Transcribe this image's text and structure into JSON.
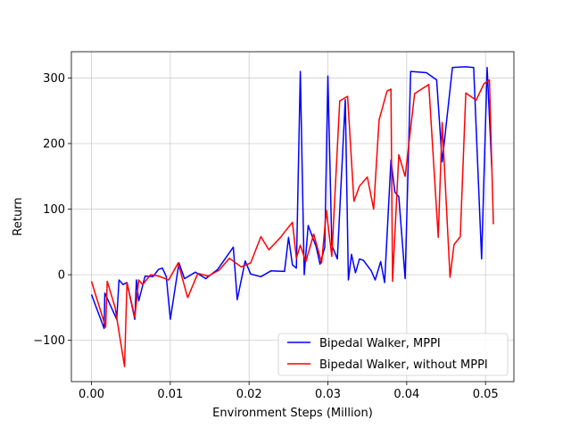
{
  "chart_data": {
    "type": "line",
    "title": "",
    "xlabel": "Environment Steps (Million)",
    "ylabel": "Return",
    "xlim": [
      -0.00255,
      0.0536
    ],
    "ylim": [
      -163,
      340
    ],
    "x_ticks": [
      0.0,
      0.01,
      0.02,
      0.03,
      0.04,
      0.05
    ],
    "x_tick_labels": [
      "0.00",
      "0.01",
      "0.02",
      "0.03",
      "0.04",
      "0.05"
    ],
    "y_ticks": [
      -100,
      0,
      100,
      200,
      300
    ],
    "y_tick_labels": [
      "−100",
      "0",
      "100",
      "200",
      "300"
    ],
    "grid": true,
    "legend_position": "lower right",
    "series": [
      {
        "name": "Bipedal Walker, MPPI",
        "color": "#0000ff",
        "x": [
          0.0,
          0.0016,
          0.0017,
          0.0032,
          0.0035,
          0.004,
          0.0045,
          0.0055,
          0.0057,
          0.006,
          0.0068,
          0.0078,
          0.0085,
          0.009,
          0.0095,
          0.01,
          0.0111,
          0.0118,
          0.0132,
          0.0145,
          0.016,
          0.018,
          0.0185,
          0.0195,
          0.0202,
          0.0215,
          0.0228,
          0.0245,
          0.025,
          0.0255,
          0.026,
          0.0265,
          0.027,
          0.0275,
          0.0285,
          0.029,
          0.0296,
          0.03,
          0.0305,
          0.0312,
          0.0322,
          0.0326,
          0.033,
          0.0335,
          0.034,
          0.0345,
          0.0355,
          0.036,
          0.0367,
          0.0372,
          0.038,
          0.0385,
          0.039,
          0.0398,
          0.0405,
          0.0425,
          0.0438,
          0.0445,
          0.0458,
          0.0475,
          0.0485,
          0.0495,
          0.0502,
          0.0508
        ],
        "y": [
          -30,
          -82,
          -28,
          -68,
          -8,
          -15,
          -12,
          -68,
          -8,
          -40,
          -2,
          -3,
          8,
          10,
          -3,
          -68,
          18,
          -6,
          4,
          -6,
          8,
          42,
          -38,
          21,
          1,
          -3,
          6,
          5,
          57,
          15,
          10,
          310,
          0,
          75,
          43,
          16,
          42,
          303,
          45,
          24,
          267,
          -8,
          31,
          3,
          24,
          22,
          6,
          -8,
          20,
          -12,
          175,
          126,
          119,
          -6,
          310,
          308,
          297,
          172,
          316,
          317,
          316,
          24,
          316,
          160
        ]
      },
      {
        "name": "Bipedal Walker, without MPPI",
        "color": "#ff0000",
        "x": [
          0.0,
          0.0018,
          0.002,
          0.003,
          0.0042,
          0.0045,
          0.0055,
          0.006,
          0.0065,
          0.0075,
          0.0085,
          0.0098,
          0.011,
          0.0122,
          0.0135,
          0.0148,
          0.0162,
          0.0175,
          0.019,
          0.0202,
          0.0215,
          0.0225,
          0.024,
          0.0245,
          0.0255,
          0.026,
          0.0265,
          0.0272,
          0.0282,
          0.0292,
          0.0298,
          0.0305,
          0.0315,
          0.0325,
          0.0333,
          0.034,
          0.035,
          0.0358,
          0.0365,
          0.0375,
          0.038,
          0.0382,
          0.039,
          0.0398,
          0.041,
          0.0415,
          0.0428,
          0.044,
          0.0445,
          0.0455,
          0.046,
          0.0468,
          0.0475,
          0.0488,
          0.0498,
          0.0505,
          0.051
        ],
        "y": [
          -10,
          -80,
          -10,
          -50,
          -140,
          -12,
          -65,
          -8,
          -15,
          0,
          -2,
          -8,
          18,
          -35,
          2,
          -2,
          7,
          25,
          12,
          18,
          58,
          38,
          57,
          65,
          80,
          25,
          45,
          20,
          62,
          18,
          98,
          28,
          265,
          272,
          112,
          135,
          149,
          100,
          236,
          280,
          283,
          -10,
          183,
          150,
          276,
          280,
          290,
          57,
          232,
          -4,
          46,
          58,
          277,
          266,
          291,
          297,
          77
        ]
      }
    ]
  }
}
